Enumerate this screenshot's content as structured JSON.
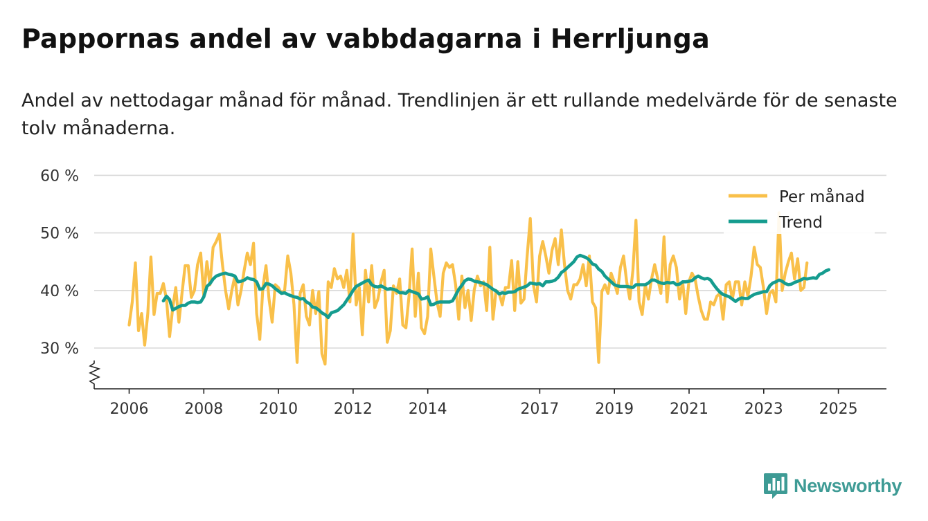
{
  "title": "Pappornas andel av vabbdagarna i Herrljunga",
  "subtitle": "Andel av nettodagar månad för månad. Trendlinjen är ett rullande medelvärde för de senaste tolv månaderna.",
  "brand": {
    "name": "Newsworthy",
    "color": "#3e9b95"
  },
  "colors": {
    "monthly": "#f9c04a",
    "trend": "#159c8f",
    "grid": "#d9d9d9",
    "axis": "#222222",
    "text": "#333333"
  },
  "chart_data": {
    "type": "line",
    "title": "Pappornas andel av vabbdagarna i Herrljunga",
    "xlabel": "",
    "ylabel": "",
    "xlim": [
      2006.0,
      2025.8
    ],
    "ylim": [
      26,
      60
    ],
    "y_ticks": [
      30,
      40,
      50,
      60
    ],
    "y_tick_labels": [
      "30 %",
      "40 %",
      "50 %",
      "60 %"
    ],
    "x_ticks": [
      2006,
      2008,
      2010,
      2012,
      2014,
      2017,
      2019,
      2021,
      2023,
      2025
    ],
    "x_tick_labels": [
      "2006",
      "2008",
      "2010",
      "2012",
      "2014",
      "2017",
      "2019",
      "2021",
      "2023",
      "2025"
    ],
    "grid": true,
    "legend_position": "top-right",
    "series": [
      {
        "name": "Per månad",
        "start": 2006.0,
        "step": 0.0833,
        "values": [
          34,
          38,
          44.8,
          33,
          36,
          30.5,
          36,
          45.8,
          35.8,
          39.5,
          39.5,
          41.2,
          38.5,
          32,
          37,
          40.5,
          34.5,
          39.5,
          44.3,
          44.3,
          38.8,
          40,
          44.5,
          46.5,
          39,
          45,
          41,
          47.5,
          48.5,
          49.8,
          44.5,
          40,
          36.8,
          40,
          42.5,
          37.5,
          40,
          43.5,
          46.5,
          44.5,
          48.2,
          36,
          31.5,
          40.5,
          44.3,
          38.5,
          34.5,
          41,
          40.5,
          39.5,
          40,
          46,
          43,
          37.5,
          27.5,
          39.5,
          41,
          35.5,
          34,
          40,
          36,
          39.8,
          29,
          27.2,
          41.5,
          40.5,
          43.8,
          42,
          42.5,
          40.5,
          43.5,
          38,
          49.8,
          37.5,
          40.5,
          32.3,
          43.5,
          38,
          44.3,
          37,
          38.5,
          41.5,
          43.5,
          31,
          33,
          40.8,
          39.5,
          42,
          34,
          33.5,
          39,
          47.2,
          35.5,
          43,
          33.5,
          32.5,
          35.5,
          47.2,
          42.5,
          38,
          35.5,
          43,
          44.8,
          44,
          44.5,
          41,
          35,
          42.5,
          37,
          40,
          34.8,
          40.2,
          42.5,
          40.8,
          41.5,
          36.5,
          47.5,
          35,
          40,
          39.5,
          37.5,
          40.5,
          40.5,
          45.2,
          36.5,
          45,
          37.8,
          38.5,
          46,
          52.5,
          41,
          38,
          46,
          48.5,
          46,
          43,
          47,
          49,
          44.5,
          50.5,
          44.5,
          40,
          38.5,
          41,
          41,
          42,
          44.5,
          40.8,
          46,
          38,
          37,
          27.5,
          39.8,
          41,
          39.5,
          43,
          41.5,
          39.5,
          44,
          46,
          41.5,
          38.5,
          43.5,
          52.2,
          38,
          35.8,
          41,
          38.5,
          42,
          44.5,
          42,
          39.5,
          49.3,
          38,
          44.5,
          46,
          44,
          38.5,
          41.5,
          36,
          41.5,
          43,
          42,
          39,
          36.5,
          35,
          35,
          38,
          37.5,
          39,
          39.5,
          35,
          41,
          41.5,
          38.5,
          41.5,
          41.5,
          37.5,
          41.5,
          39,
          42.5,
          47.5,
          44.5,
          44,
          40.5,
          36,
          39.5,
          40,
          38,
          53.5,
          40,
          43,
          45,
          46.5,
          42,
          45.5,
          40,
          40.5,
          44.8
        ]
      },
      {
        "name": "Trend",
        "start": 2006.917,
        "step": 0.0833,
        "values": [
          38.2,
          39,
          38.4,
          36.6,
          36.9,
          37.2,
          37.4,
          37.4,
          37.8,
          38,
          38,
          37.9,
          38,
          38.9,
          40.7,
          41.2,
          42,
          42.5,
          42.7,
          42.9,
          43,
          42.8,
          42.7,
          42.5,
          41.5,
          41.6,
          41.8,
          42.2,
          42,
          41.9,
          41.5,
          40.2,
          40.3,
          41.2,
          41.1,
          40.8,
          40.3,
          39.9,
          39.5,
          39.6,
          39.3,
          39.1,
          38.9,
          38.8,
          38.5,
          38.6,
          38,
          37.7,
          37.1,
          37,
          36.6,
          36.1,
          35.8,
          35.3,
          36.1,
          36.3,
          36.5,
          37,
          37.5,
          38.3,
          39.1,
          40,
          40.7,
          41,
          41.3,
          41.6,
          41.8,
          41,
          40.7,
          40.6,
          40.8,
          40.5,
          40.2,
          40.3,
          40.2,
          40,
          39.6,
          39.6,
          39.5,
          40,
          39.8,
          39.6,
          39.4,
          38.5,
          38.6,
          38.9,
          37.5,
          37.6,
          37.9,
          38,
          38,
          38,
          38,
          38.2,
          39.2,
          40.2,
          40.9,
          41.7,
          42,
          41.9,
          41.6,
          41.5,
          41.4,
          41.2,
          41,
          40.6,
          40.2,
          39.9,
          39.4,
          39.6,
          39.5,
          39.7,
          39.7,
          39.8,
          40.2,
          40.4,
          40.6,
          40.8,
          41.3,
          41.2,
          41.1,
          41.2,
          40.8,
          41.5,
          41.5,
          41.6,
          41.8,
          42.3,
          43.1,
          43.5,
          44,
          44.5,
          45,
          45.8,
          46.1,
          45.9,
          45.7,
          45.3,
          44.6,
          44.4,
          43.7,
          43.3,
          42.5,
          42,
          41.5,
          41,
          40.8,
          40.7,
          40.7,
          40.7,
          40.6,
          40.5,
          41,
          41,
          41,
          41,
          41.3,
          41.8,
          41.8,
          41.5,
          41.3,
          41.2,
          41.4,
          41.3,
          41.4,
          41,
          41.1,
          41.5,
          41.5,
          41.6,
          41.7,
          42.2,
          42.5,
          42.2,
          42,
          42.1,
          41.8,
          41,
          40.3,
          39.7,
          39.3,
          39.1,
          38.9,
          38.5,
          38.1,
          38.5,
          38.7,
          38.6,
          38.6,
          39,
          39.3,
          39.5,
          39.6,
          39.8,
          39.8,
          40.8,
          41.3,
          41.5,
          41.8,
          41.6,
          41.2,
          41,
          41.1,
          41.4,
          41.6,
          41.8,
          42.1,
          42,
          42.1,
          42.2,
          42.1,
          42.8,
          43,
          43.4,
          43.6
        ]
      }
    ]
  }
}
